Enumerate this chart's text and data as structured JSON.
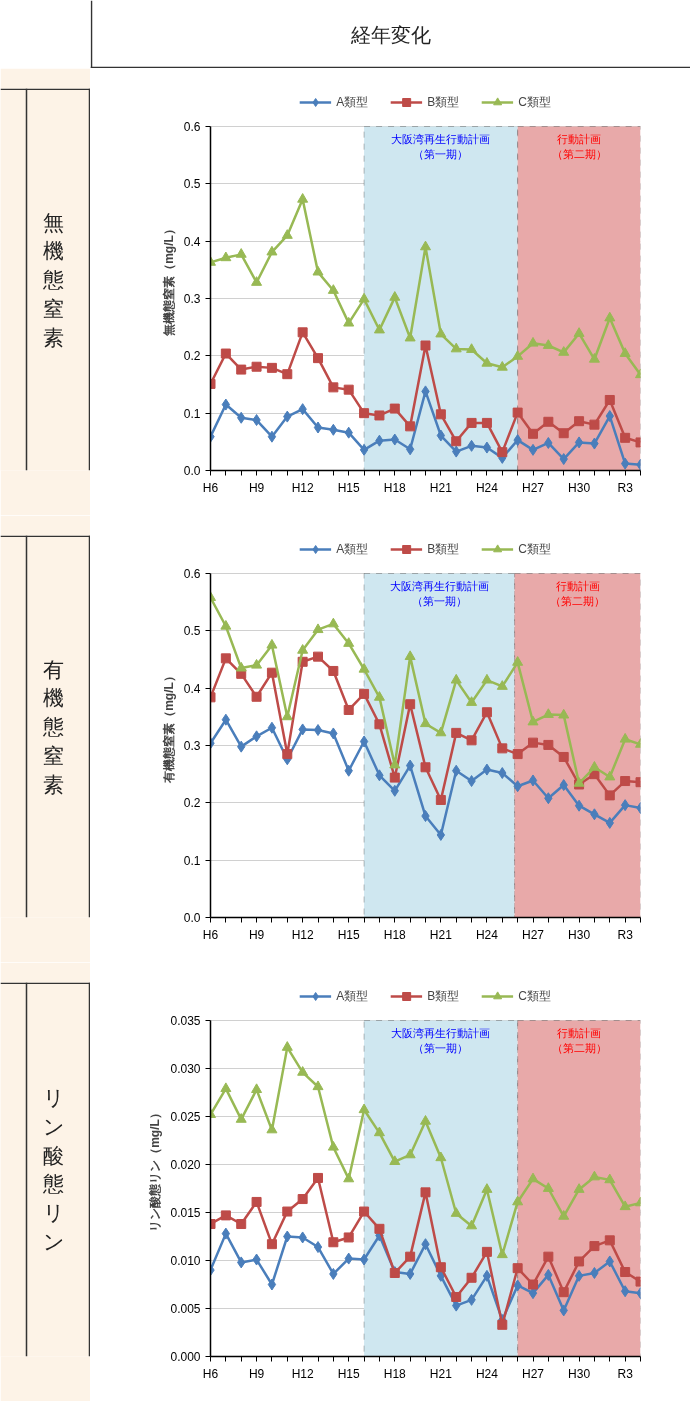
{
  "chart_data": [
    {
      "type": "line",
      "title": "無機態窒素",
      "annotations": [
        "経年変化",
        "大阪湾再生行動計画（第一期）",
        "行動計画（第二期）"
      ],
      "ylabel": "無機態窒素（mg/L）",
      "categories": [
        "H6",
        null,
        null,
        "H9",
        null,
        null,
        "H12",
        null,
        null,
        "H15",
        null,
        null,
        "H18",
        null,
        null,
        "H21",
        null,
        null,
        "H24",
        null,
        null,
        "H27",
        null,
        null,
        "H30",
        null,
        null,
        "R3",
        null
      ],
      "series": [
        {
          "name": "A類型",
          "color": "#4a7ebb",
          "marker": "diamond",
          "values": [
            0.059,
            0.115,
            0.092,
            0.088,
            0.059,
            0.094,
            0.107,
            0.075,
            0.071,
            0.066,
            0.036,
            0.052,
            0.054,
            0.037,
            0.138,
            0.061,
            0.033,
            0.043,
            0.04,
            0.022,
            0.053,
            0.036,
            0.048,
            0.02,
            0.049,
            0.047,
            0.095,
            0.012,
            0.01
          ]
        },
        {
          "name": "B類型",
          "color": "#be4b48",
          "marker": "square",
          "values": [
            0.151,
            0.204,
            0.176,
            0.181,
            0.179,
            0.168,
            0.241,
            0.196,
            0.145,
            0.141,
            0.1,
            0.096,
            0.108,
            0.077,
            0.218,
            0.098,
            0.051,
            0.083,
            0.083,
            0.032,
            0.101,
            0.064,
            0.085,
            0.065,
            0.086,
            0.08,
            0.123,
            0.057,
            0.049
          ]
        },
        {
          "name": "C類型",
          "color": "#98b954",
          "marker": "triangle",
          "values": [
            0.363,
            0.371,
            0.377,
            0.328,
            0.381,
            0.41,
            0.473,
            0.346,
            0.314,
            0.257,
            0.299,
            0.245,
            0.302,
            0.231,
            0.39,
            0.238,
            0.212,
            0.211,
            0.187,
            0.18,
            0.199,
            0.222,
            0.218,
            0.206,
            0.239,
            0.194,
            0.266,
            0.204,
            0.167
          ]
        }
      ],
      "ylim": [
        0,
        0.6
      ],
      "yticks": [
        {
          "value": 0,
          "label": "0.0"
        },
        0.1,
        0.2,
        0.3,
        0.4,
        0.5,
        0.6
      ],
      "grid": "y",
      "legend": "top",
      "line_style": "solid"
    },
    {
      "type": "line",
      "title": "有機態窒素",
      "annotations": [
        "大阪湾再生行動計画（第一期）",
        "行動計画（第二期）"
      ],
      "ylabel": "有機態窒素（mg/L）",
      "categories": [
        "H6",
        null,
        null,
        "H9",
        null,
        null,
        "H12",
        null,
        null,
        "H15",
        null,
        null,
        "H18",
        null,
        null,
        "H21",
        null,
        null,
        "H24",
        null,
        null,
        "H27",
        null,
        null,
        "H30",
        null,
        null,
        "R3",
        null
      ],
      "series": [
        {
          "name": "A類型",
          "color": "#4a7ebb",
          "marker": "diamond",
          "values": [
            0.304,
            0.345,
            0.298,
            0.316,
            0.331,
            0.276,
            0.328,
            0.327,
            0.321,
            0.256,
            0.307,
            0.248,
            0.221,
            0.265,
            0.177,
            0.144,
            0.256,
            0.238,
            0.258,
            0.252,
            0.229,
            0.239,
            0.208,
            0.231,
            0.195,
            0.18,
            0.165,
            0.196,
            0.191
          ]
        },
        {
          "name": "B類型",
          "color": "#be4b48",
          "marker": "square",
          "values": [
            0.384,
            0.452,
            0.425,
            0.385,
            0.427,
            0.285,
            0.446,
            0.455,
            0.43,
            0.362,
            0.39,
            0.337,
            0.244,
            0.372,
            0.262,
            0.205,
            0.322,
            0.309,
            0.358,
            0.295,
            0.285,
            0.305,
            0.301,
            0.28,
            0.232,
            0.25,
            0.213,
            0.238,
            0.236
          ]
        },
        {
          "name": "C類型",
          "color": "#98b954",
          "marker": "triangle",
          "values": [
            0.558,
            0.508,
            0.435,
            0.44,
            0.475,
            0.35,
            0.466,
            0.502,
            0.512,
            0.478,
            0.433,
            0.384,
            0.266,
            0.455,
            0.338,
            0.322,
            0.414,
            0.375,
            0.414,
            0.403,
            0.445,
            0.341,
            0.354,
            0.353,
            0.234,
            0.262,
            0.245,
            0.311,
            0.302
          ]
        }
      ],
      "ylim": [
        0,
        0.6
      ],
      "yticks": [
        {
          "value": 0,
          "label": "0.0"
        },
        0.1,
        0.2,
        0.3,
        0.4,
        0.5,
        0.6
      ],
      "grid": "y",
      "legend": "top",
      "line_style": "solid"
    },
    {
      "type": "line",
      "title": "リン酸態リン",
      "annotations": [
        "大阪湾再生行動計画（第一期）",
        "行動計画（第二期）"
      ],
      "ylabel": "リン酸態リン（mg/L）",
      "categories": [
        "H6",
        null,
        null,
        "H9",
        null,
        null,
        "H12",
        null,
        null,
        "H15",
        null,
        null,
        "H18",
        null,
        null,
        "H21",
        null,
        null,
        "H24",
        null,
        null,
        "H27",
        null,
        null,
        "H30",
        null,
        null,
        "R3",
        null
      ],
      "series": [
        {
          "name": "A類型",
          "color": "#4a7ebb",
          "marker": "diamond",
          "values": [
            0.009,
            0.0128,
            0.0098,
            0.0101,
            0.0075,
            0.0125,
            0.0124,
            0.0114,
            0.0086,
            0.0102,
            0.0101,
            0.0126,
            0.0088,
            0.0086,
            0.0117,
            0.0084,
            0.0053,
            0.0059,
            0.0084,
            0.0038,
            0.0074,
            0.0066,
            0.0085,
            0.0048,
            0.0084,
            0.0087,
            0.0099,
            0.0068,
            0.0066
          ]
        },
        {
          "name": "B類型",
          "color": "#be4b48",
          "marker": "square",
          "values": [
            0.0138,
            0.0147,
            0.0138,
            0.0161,
            0.0117,
            0.0151,
            0.0164,
            0.0186,
            0.0119,
            0.0124,
            0.0151,
            0.0133,
            0.0087,
            0.0104,
            0.0171,
            0.0093,
            0.0062,
            0.0082,
            0.0109,
            0.0033,
            0.0092,
            0.0075,
            0.0104,
            0.0067,
            0.0099,
            0.0115,
            0.0121,
            0.0088,
            0.0078
          ]
        },
        {
          "name": "C類型",
          "color": "#98b954",
          "marker": "triangle",
          "values": [
            0.0252,
            0.0279,
            0.0247,
            0.0278,
            0.0236,
            0.0322,
            0.0296,
            0.0281,
            0.0218,
            0.0185,
            0.0257,
            0.0233,
            0.0203,
            0.021,
            0.0245,
            0.0207,
            0.0149,
            0.0136,
            0.0174,
            0.0106,
            0.0161,
            0.0185,
            0.0175,
            0.0146,
            0.0174,
            0.0187,
            0.0184,
            0.0156,
            0.016
          ]
        }
      ],
      "ylim": [
        0,
        0.035
      ],
      "yticks": [
        {
          "value": 0,
          "label": "0.000"
        },
        {
          "value": 0.005,
          "label": "0.005"
        },
        {
          "value": 0.01,
          "label": "0.010"
        },
        {
          "value": 0.015,
          "label": "0.015"
        },
        {
          "value": 0.02,
          "label": "0.020"
        },
        {
          "value": 0.025,
          "label": "0.025"
        },
        {
          "value": 0.03,
          "label": "0.030"
        },
        {
          "value": 0.035,
          "label": "0.035"
        }
      ],
      "grid": "y",
      "legend": "top",
      "line_style": "solid"
    }
  ]
}
